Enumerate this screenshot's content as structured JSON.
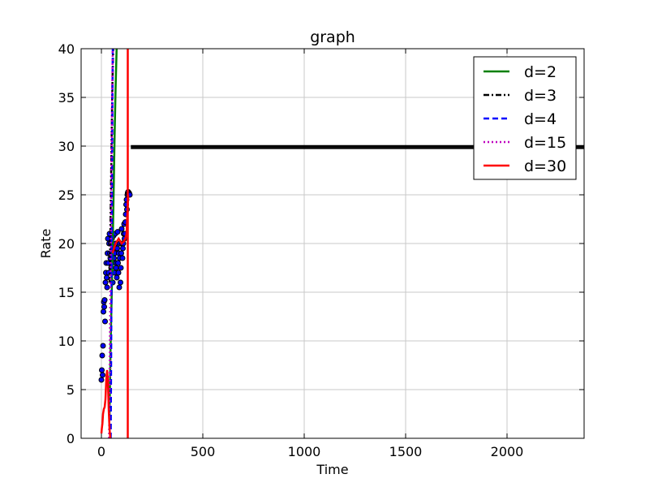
{
  "chart_data": {
    "type": "line",
    "title": "graph",
    "xlabel": "Time",
    "ylabel": "Rate",
    "xlim": [
      -100,
      2380
    ],
    "ylim": [
      0,
      40
    ],
    "xticks": [
      0,
      500,
      1000,
      1500,
      2000
    ],
    "yticks": [
      0,
      5,
      10,
      15,
      20,
      25,
      30,
      35,
      40
    ],
    "grid": true,
    "legend_position": "top-right",
    "colors": {
      "d2": "#008000",
      "d3": "#000000",
      "d4": "#0000ff",
      "d15": "#bf00bf",
      "d30": "#ff0000",
      "scatter_fill": "#0000ff",
      "scatter_edge": "#000000"
    },
    "series": [
      {
        "name": "d=2",
        "color": "#008000",
        "style": "solid",
        "x": [
          40,
          45,
          50,
          55,
          60,
          65,
          70,
          75
        ],
        "y": [
          2,
          9,
          14,
          19,
          25,
          31,
          36,
          40
        ]
      },
      {
        "name": "d=3",
        "color": "#000000",
        "style": "dashdot",
        "x": [
          40,
          42,
          44,
          46,
          48,
          50,
          52,
          54,
          56,
          58
        ],
        "y": [
          16,
          18,
          21,
          24,
          27,
          30,
          33,
          36,
          38,
          40
        ]
      },
      {
        "name": "d=4",
        "color": "#0000ff",
        "style": "dashed",
        "x": [
          46,
          48,
          50,
          52,
          54,
          56
        ],
        "y": [
          0,
          8,
          17,
          25,
          33,
          40
        ]
      },
      {
        "name": "d=15",
        "color": "#bf00bf",
        "style": "dotted",
        "x": [
          38,
          40,
          42,
          44,
          46,
          48,
          50,
          52,
          54,
          56
        ],
        "y": [
          0,
          4,
          9,
          14,
          19,
          24,
          29,
          33,
          37,
          40
        ]
      },
      {
        "name": "d=30",
        "color": "#ff0000",
        "style": "solid",
        "x": [
          0,
          2,
          5,
          8,
          12,
          16,
          20,
          24,
          28,
          32,
          36,
          40,
          44,
          48
        ],
        "y": [
          0.5,
          1,
          1.5,
          2.5,
          3,
          3.2,
          4,
          6,
          7,
          6,
          3,
          1,
          0,
          0
        ]
      },
      {
        "name": "d=30 vertical",
        "color": "#ff0000",
        "style": "solid",
        "x": [
          130,
          130
        ],
        "y": [
          0,
          40
        ]
      },
      {
        "name": "d=30 ramp",
        "color": "#ff0000",
        "style": "solid",
        "x": [
          55,
          70,
          85,
          100,
          110,
          118,
          124,
          128,
          132
        ],
        "y": [
          19,
          20,
          20.5,
          20,
          20.2,
          20.5,
          21,
          23,
          25
        ]
      },
      {
        "name": "d=3 flat",
        "color": "#000000",
        "style": "solid",
        "x": [
          145,
          2380
        ],
        "y": [
          30,
          30
        ]
      },
      {
        "name": "d=3 flat 2",
        "color": "#000000",
        "style": "solid",
        "x": [
          145,
          2380
        ],
        "y": [
          29.8,
          29.8
        ]
      }
    ],
    "scatter": {
      "x": [
        0,
        2,
        4,
        6,
        8,
        10,
        12,
        14,
        16,
        18,
        20,
        22,
        24,
        26,
        28,
        30,
        32,
        34,
        36,
        38,
        40,
        42,
        44,
        46,
        48,
        50,
        52,
        54,
        56,
        58,
        60,
        62,
        64,
        66,
        68,
        70,
        72,
        74,
        76,
        78,
        80,
        82,
        84,
        86,
        88,
        90,
        92,
        94,
        96,
        98,
        100,
        102,
        104,
        106,
        108,
        110,
        112,
        114,
        116,
        118,
        120,
        122,
        124,
        126,
        128,
        130,
        132,
        134,
        136,
        138,
        140
      ],
      "y": [
        6,
        7,
        8.5,
        6.5,
        9.5,
        13,
        14,
        13.5,
        14.2,
        12,
        16,
        17,
        18,
        16.5,
        15.5,
        19,
        20.5,
        18,
        17,
        20,
        21,
        19,
        18.5,
        20,
        17.5,
        19,
        20.5,
        18,
        16,
        19.5,
        20.8,
        18.5,
        17,
        19,
        21,
        20,
        17.5,
        18,
        16.5,
        19.5,
        21.2,
        18,
        17,
        19,
        15.5,
        18.5,
        20,
        16,
        17.5,
        19,
        21.5,
        20,
        18.5,
        19.5,
        20,
        21,
        22,
        20.5,
        21,
        22.2,
        23,
        24,
        24.5,
        23.5,
        25,
        25.2,
        25.3,
        25,
        25.2,
        25.1,
        25
      ]
    },
    "legend": [
      "d=2",
      "d=3",
      "d=4",
      "d=15",
      "d=30"
    ]
  }
}
